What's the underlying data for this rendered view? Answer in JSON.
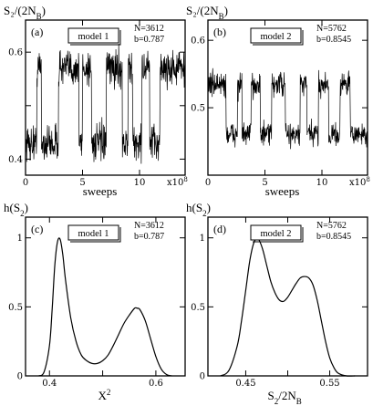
{
  "chart_data": [
    {
      "type": "line",
      "panel": "(a)",
      "model_label": "model 1",
      "info": [
        "N=3612",
        "b=0.787"
      ],
      "ylabel": "S₂/(2N",
      "ylabel_sub": "B",
      "ylabel_end": ")",
      "xlabel": "sweeps",
      "x_multiplier": "x10",
      "x_multiplier_exp": "8",
      "xlim": [
        0,
        14
      ],
      "ylim": [
        0.37,
        0.66
      ],
      "xticks": [
        0,
        5,
        10
      ],
      "xtick_labels": [
        "0",
        "5",
        "10"
      ],
      "yticks": [
        0.4,
        0.5,
        0.6
      ],
      "ytick_labels": [
        "0.4",
        "",
        "0.6"
      ],
      "levels": {
        "low": 0.43,
        "high": 0.57
      },
      "segments": [
        {
          "x0": 0.0,
          "x1": 1.0,
          "state": "low"
        },
        {
          "x0": 1.0,
          "x1": 1.4,
          "state": "high"
        },
        {
          "x0": 1.4,
          "x1": 2.9,
          "state": "low"
        },
        {
          "x0": 2.9,
          "x1": 4.7,
          "state": "high"
        },
        {
          "x0": 4.7,
          "x1": 5.0,
          "state": "low"
        },
        {
          "x0": 5.0,
          "x1": 5.8,
          "state": "high"
        },
        {
          "x0": 5.8,
          "x1": 7.1,
          "state": "low"
        },
        {
          "x0": 7.1,
          "x1": 8.5,
          "state": "high"
        },
        {
          "x0": 8.5,
          "x1": 9.0,
          "state": "low"
        },
        {
          "x0": 9.0,
          "x1": 9.4,
          "state": "high"
        },
        {
          "x0": 9.4,
          "x1": 10.2,
          "state": "low"
        },
        {
          "x0": 10.2,
          "x1": 10.9,
          "state": "high"
        },
        {
          "x0": 10.9,
          "x1": 11.8,
          "state": "low"
        },
        {
          "x0": 11.8,
          "x1": 14.0,
          "state": "high"
        }
      ]
    },
    {
      "type": "line",
      "panel": "(b)",
      "model_label": "model 2",
      "info": [
        "N=5762",
        "b=0.8545"
      ],
      "ylabel": "S₂/(2N",
      "ylabel_sub": "B",
      "ylabel_end": ")",
      "xlabel": "sweeps",
      "x_multiplier": "x10",
      "x_multiplier_exp": "8",
      "xlim": [
        0,
        14
      ],
      "ylim": [
        0.4,
        0.63
      ],
      "xticks": [
        0,
        5,
        10
      ],
      "xtick_labels": [
        "0",
        "5",
        "10"
      ],
      "yticks": [
        0.5,
        0.6
      ],
      "ytick_labels": [
        "0.5",
        "0.6"
      ],
      "levels": {
        "low": 0.46,
        "high": 0.535
      },
      "segments": [
        {
          "x0": 0.0,
          "x1": 1.6,
          "state": "high"
        },
        {
          "x0": 1.6,
          "x1": 2.6,
          "state": "low"
        },
        {
          "x0": 2.6,
          "x1": 3.0,
          "state": "high"
        },
        {
          "x0": 3.0,
          "x1": 3.8,
          "state": "low"
        },
        {
          "x0": 3.8,
          "x1": 4.6,
          "state": "high"
        },
        {
          "x0": 4.6,
          "x1": 5.6,
          "state": "low"
        },
        {
          "x0": 5.6,
          "x1": 6.8,
          "state": "high"
        },
        {
          "x0": 6.8,
          "x1": 8.1,
          "state": "low"
        },
        {
          "x0": 8.1,
          "x1": 8.7,
          "state": "high"
        },
        {
          "x0": 8.7,
          "x1": 9.7,
          "state": "low"
        },
        {
          "x0": 9.7,
          "x1": 10.6,
          "state": "high"
        },
        {
          "x0": 10.6,
          "x1": 11.6,
          "state": "low"
        },
        {
          "x0": 11.6,
          "x1": 12.5,
          "state": "high"
        },
        {
          "x0": 12.5,
          "x1": 14.0,
          "state": "low"
        }
      ]
    },
    {
      "type": "line",
      "panel": "(c)",
      "model_label": "model 1",
      "info": [
        "N=3612",
        "b=0.787"
      ],
      "ylabel": "h(S",
      "ylabel_sub": "2",
      "ylabel_end": ")",
      "xlabel": "X",
      "xlabel_sup": "2",
      "xlim": [
        0.355,
        0.655
      ],
      "ylim": [
        0,
        1.15
      ],
      "xticks": [
        0.4,
        0.5,
        0.6
      ],
      "xtick_labels": [
        "0.4",
        "",
        "0.6"
      ],
      "yticks": [
        0,
        0.5,
        1
      ],
      "ytick_labels": [
        "0",
        "0.5",
        "1"
      ],
      "x": [
        0.38,
        0.39,
        0.4,
        0.405,
        0.41,
        0.415,
        0.42,
        0.425,
        0.43,
        0.44,
        0.45,
        0.46,
        0.47,
        0.48,
        0.49,
        0.5,
        0.51,
        0.52,
        0.53,
        0.54,
        0.55,
        0.56,
        0.565,
        0.57,
        0.58,
        0.59,
        0.6,
        0.61,
        0.62,
        0.63
      ],
      "y": [
        0.0,
        0.03,
        0.22,
        0.48,
        0.8,
        0.97,
        0.99,
        0.88,
        0.7,
        0.42,
        0.25,
        0.15,
        0.11,
        0.09,
        0.09,
        0.11,
        0.15,
        0.22,
        0.3,
        0.38,
        0.44,
        0.49,
        0.49,
        0.48,
        0.4,
        0.27,
        0.14,
        0.05,
        0.01,
        0.0
      ]
    },
    {
      "type": "line",
      "panel": "(d)",
      "model_label": "model 2",
      "info": [
        "N=5762",
        "b=0.8545"
      ],
      "ylabel": "h(S",
      "ylabel_sub": "2",
      "ylabel_end": ")",
      "xlabel": "S",
      "xlabel_sub": "2",
      "xlabel_end": "/2N",
      "xlabel_sub2": "B",
      "xlim": [
        0.405,
        0.595
      ],
      "ylim": [
        0,
        1.15
      ],
      "xticks": [
        0.45,
        0.5,
        0.55
      ],
      "xtick_labels": [
        "0.45",
        "",
        "0.55"
      ],
      "yticks": [
        0,
        0.5,
        1
      ],
      "ytick_labels": [
        "0",
        "0.5",
        "1"
      ],
      "x": [
        0.42,
        0.43,
        0.44,
        0.445,
        0.45,
        0.455,
        0.46,
        0.465,
        0.47,
        0.475,
        0.48,
        0.485,
        0.49,
        0.495,
        0.5,
        0.505,
        0.51,
        0.515,
        0.52,
        0.525,
        0.53,
        0.535,
        0.54,
        0.545,
        0.55,
        0.555,
        0.56,
        0.57,
        0.58
      ],
      "y": [
        0.0,
        0.04,
        0.22,
        0.4,
        0.62,
        0.84,
        0.97,
        0.99,
        0.92,
        0.8,
        0.68,
        0.6,
        0.55,
        0.54,
        0.57,
        0.62,
        0.67,
        0.71,
        0.72,
        0.71,
        0.66,
        0.55,
        0.4,
        0.25,
        0.13,
        0.06,
        0.02,
        0.0,
        0.0
      ]
    }
  ]
}
